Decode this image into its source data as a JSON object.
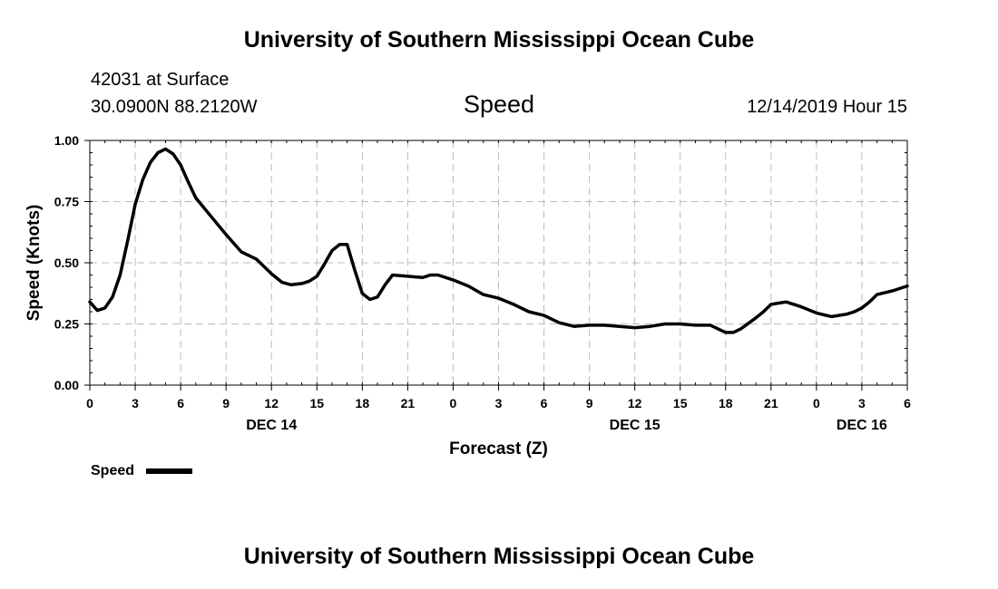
{
  "header": {
    "top_title": "University of Southern Mississippi Ocean Cube",
    "station": "42031 at Surface",
    "coords": "30.0900N 88.2120W",
    "parameter": "Speed",
    "issued": "12/14/2019 Hour 15"
  },
  "footer": {
    "bottom_title": "University of Southern Mississippi Ocean Cube"
  },
  "colors": {
    "line": "#000000",
    "grid": "#bbbbbb"
  },
  "chart_data": {
    "type": "line",
    "title": "Speed",
    "xlabel": "Forecast (Z)",
    "ylabel": "Speed (Knots)",
    "xlim": [
      0,
      54
    ],
    "ylim": [
      0,
      1
    ],
    "grid": true,
    "y_ticks": [
      0,
      0.25,
      0.5,
      0.75,
      1.0
    ],
    "y_tick_labels": [
      "0.00",
      "0.25",
      "0.50",
      "0.75",
      "1.00"
    ],
    "x_ticks": [
      0,
      3,
      6,
      9,
      12,
      15,
      18,
      21,
      24,
      27,
      30,
      33,
      36,
      39,
      42,
      45,
      48,
      51,
      54
    ],
    "x_tick_labels": [
      "0",
      "3",
      "6",
      "9",
      "12",
      "15",
      "18",
      "21",
      "0",
      "3",
      "6",
      "9",
      "12",
      "15",
      "18",
      "21",
      "0",
      "3",
      "6"
    ],
    "day_labels": [
      {
        "x": 12,
        "label": "DEC 14"
      },
      {
        "x": 36,
        "label": "DEC 15"
      },
      {
        "x": 51,
        "label": "DEC 16"
      }
    ],
    "legend": {
      "label": "Speed",
      "placement": "bottom-left"
    },
    "series": [
      {
        "name": "Speed",
        "x": [
          0,
          0.5,
          1,
          1.5,
          2,
          2.5,
          3,
          3.5,
          4,
          4.5,
          5,
          5.5,
          6,
          6.5,
          7,
          8,
          9,
          10,
          11,
          12,
          12.7,
          13.3,
          14,
          14.5,
          15,
          15.5,
          16,
          16.5,
          17,
          17.5,
          18,
          18.5,
          19,
          19.5,
          20,
          21,
          22,
          22.5,
          23,
          24,
          25,
          26,
          27,
          28,
          29,
          30,
          31,
          32,
          33,
          34,
          35,
          36,
          37,
          38,
          39,
          40,
          41,
          41.5,
          42,
          42.5,
          43,
          44,
          44.5,
          45,
          46,
          47,
          48,
          49,
          50,
          50.5,
          51,
          51.5,
          52,
          53,
          54
        ],
        "values": [
          0.34,
          0.305,
          0.315,
          0.36,
          0.45,
          0.59,
          0.74,
          0.84,
          0.91,
          0.95,
          0.965,
          0.945,
          0.9,
          0.83,
          0.765,
          0.69,
          0.615,
          0.545,
          0.515,
          0.455,
          0.42,
          0.41,
          0.415,
          0.425,
          0.445,
          0.495,
          0.55,
          0.575,
          0.575,
          0.47,
          0.375,
          0.35,
          0.36,
          0.41,
          0.45,
          0.445,
          0.44,
          0.45,
          0.45,
          0.43,
          0.405,
          0.37,
          0.355,
          0.33,
          0.3,
          0.285,
          0.255,
          0.24,
          0.245,
          0.245,
          0.24,
          0.235,
          0.24,
          0.25,
          0.25,
          0.245,
          0.245,
          0.23,
          0.215,
          0.215,
          0.23,
          0.275,
          0.3,
          0.33,
          0.34,
          0.32,
          0.295,
          0.28,
          0.29,
          0.3,
          0.315,
          0.34,
          0.37,
          0.385,
          0.405
        ]
      }
    ]
  }
}
